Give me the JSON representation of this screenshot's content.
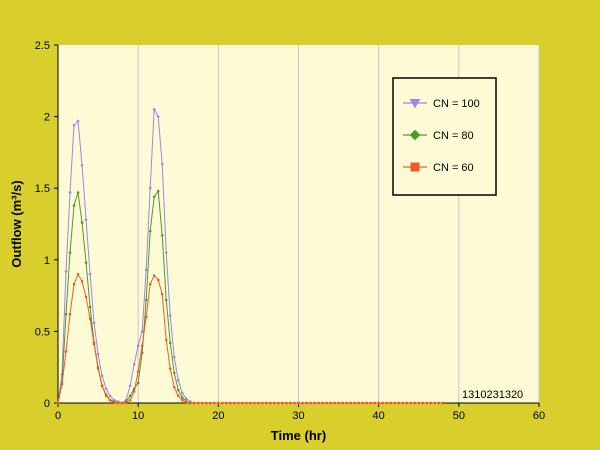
{
  "colors": {
    "page_background": "#d8cf2c",
    "plot_background": "#fdfbd6",
    "gridline": "#c8c8c8"
  },
  "chart_data": {
    "type": "line",
    "xlabel": "Time (hr)",
    "ylabel": "Outflow (m³/s)",
    "xlim": [
      0,
      60
    ],
    "ylim": [
      0,
      2.5
    ],
    "x_ticks": [
      0,
      10,
      20,
      30,
      40,
      50,
      60
    ],
    "y_ticks": [
      0,
      0.5,
      1,
      1.5,
      2,
      2.5
    ],
    "x_tick_labels": [
      "0",
      "10",
      "20",
      "30",
      "40",
      "50",
      "60"
    ],
    "y_tick_labels": [
      "0",
      "0.5",
      "1",
      "1.5",
      "2",
      "2.5"
    ],
    "grid": "vertical",
    "legend_position": "top-right",
    "annotation": "1310231320",
    "x": [
      0,
      0.5,
      1,
      1.5,
      2,
      2.5,
      3,
      3.5,
      4,
      4.5,
      5,
      5.5,
      6,
      6.5,
      7,
      7.5,
      8,
      8.5,
      9,
      9.5,
      10,
      10.5,
      11,
      11.5,
      12,
      12.5,
      13,
      13.5,
      14,
      14.5,
      15,
      15.5,
      16,
      16.5,
      17,
      17.5,
      18,
      18.5,
      19,
      19.5,
      20,
      20.5,
      21,
      21.5,
      22,
      22.5,
      23,
      23.5,
      24,
      24.5,
      25,
      25.5,
      26,
      26.5,
      27,
      27.5,
      28,
      28.5,
      29,
      29.5,
      30,
      30.5,
      31,
      31.5,
      32,
      32.5,
      33,
      33.5,
      34,
      34.5,
      35,
      35.5,
      36,
      36.5,
      37,
      37.5,
      38,
      38.5,
      39,
      39.5,
      40,
      40.5,
      41,
      41.5,
      42,
      42.5,
      43,
      43.5,
      44,
      44.5,
      45,
      45.5,
      46,
      46.5,
      47,
      47.5,
      48
    ],
    "series": [
      {
        "name": "CN = 100",
        "color": "#9f86e0",
        "marker": "triangle",
        "values": [
          0,
          0.2,
          0.92,
          1.47,
          1.94,
          1.97,
          1.66,
          1.28,
          0.9,
          0.56,
          0.34,
          0.19,
          0.1,
          0.05,
          0.02,
          0.01,
          0,
          0.02,
          0.12,
          0.27,
          0.4,
          0.5,
          0.93,
          1.5,
          2.05,
          2.0,
          1.67,
          1.05,
          0.61,
          0.32,
          0.16,
          0.07,
          0.03,
          0.01,
          0,
          0,
          0,
          0,
          0,
          0,
          0,
          0,
          0,
          0,
          0,
          0,
          0,
          0,
          0,
          0,
          0,
          0,
          0,
          0,
          0,
          0,
          0,
          0,
          0,
          0,
          0,
          0,
          0,
          0,
          0,
          0,
          0,
          0,
          0,
          0,
          0,
          0,
          0,
          0,
          0,
          0,
          0,
          0,
          0,
          0,
          0,
          0,
          0,
          0,
          0,
          0,
          0,
          0,
          0,
          0,
          0,
          0,
          0,
          0,
          0,
          0,
          0
        ]
      },
      {
        "name": "CN = 80",
        "color": "#4f9a2c",
        "marker": "diamond",
        "values": [
          0,
          0.14,
          0.62,
          1.05,
          1.38,
          1.47,
          1.26,
          0.98,
          0.67,
          0.42,
          0.24,
          0.12,
          0.06,
          0.02,
          0.01,
          0,
          0,
          0.01,
          0.05,
          0.1,
          0.14,
          0.35,
          0.72,
          1.2,
          1.44,
          1.48,
          1.17,
          0.72,
          0.42,
          0.21,
          0.09,
          0.04,
          0.01,
          0,
          0,
          0,
          0,
          0,
          0,
          0,
          0,
          0,
          0,
          0,
          0,
          0,
          0,
          0,
          0,
          0,
          0,
          0,
          0,
          0,
          0,
          0,
          0,
          0,
          0,
          0,
          0,
          0,
          0,
          0,
          0,
          0,
          0,
          0,
          0,
          0,
          0,
          0,
          0,
          0,
          0,
          0,
          0,
          0,
          0,
          0,
          0,
          0,
          0,
          0,
          0,
          0,
          0,
          0,
          0,
          0,
          0,
          0,
          0,
          0,
          0,
          0,
          0
        ]
      },
      {
        "name": "CN = 60",
        "color": "#f05a28",
        "marker": "square",
        "values": [
          0,
          0.13,
          0.36,
          0.62,
          0.83,
          0.9,
          0.85,
          0.74,
          0.59,
          0.41,
          0.25,
          0.12,
          0.05,
          0.02,
          0,
          0,
          0,
          0,
          0.02,
          0.08,
          0.22,
          0.4,
          0.6,
          0.83,
          0.89,
          0.86,
          0.76,
          0.44,
          0.24,
          0.11,
          0.05,
          0.02,
          0,
          0,
          0,
          0,
          0,
          0,
          0,
          0,
          0,
          0,
          0,
          0,
          0,
          0,
          0,
          0,
          0,
          0,
          0,
          0,
          0,
          0,
          0,
          0,
          0,
          0,
          0,
          0,
          0,
          0,
          0,
          0,
          0,
          0,
          0,
          0,
          0,
          0,
          0,
          0,
          0,
          0,
          0,
          0,
          0,
          0,
          0,
          0,
          0,
          0,
          0,
          0,
          0,
          0,
          0,
          0,
          0,
          0,
          0,
          0,
          0,
          0,
          0,
          0,
          0
        ]
      }
    ]
  }
}
